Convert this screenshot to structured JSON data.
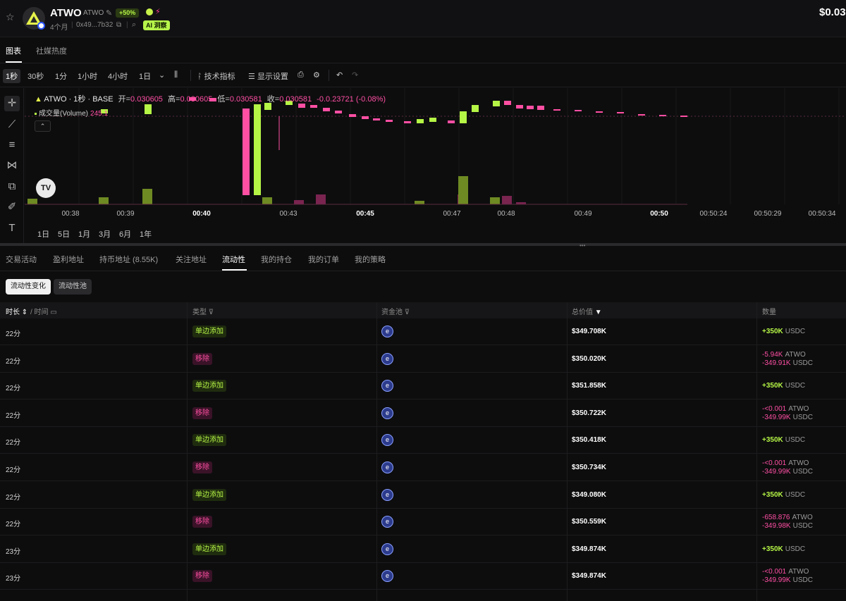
{
  "header": {
    "token_name": "ATWO",
    "token_symbol": "ATWO",
    "pct_badge": "+50%",
    "age": "4个月",
    "address": "0x49...7b32",
    "ai_badge": "AI 洞察",
    "price": "$0.03",
    "colors": {
      "accent_green": "#b5f545",
      "accent_pink": "#ff4fa3"
    }
  },
  "tabs": [
    {
      "label": "图表",
      "active": true
    },
    {
      "label": "社媒热度",
      "active": false
    }
  ],
  "toolbar": {
    "intervals": [
      "1秒",
      "30秒",
      "1分",
      "1小时",
      "4小时",
      "1日"
    ],
    "active_interval": "1秒",
    "indicators": "技术指标",
    "display_settings": "显示设置"
  },
  "chart_legend": {
    "title": "ATWO · 1秒 · BASE",
    "open_label": "开=",
    "open": "0.030605",
    "high_label": "高=",
    "high": "0.030605",
    "low_label": "低=",
    "low": "0.030581",
    "close_label": "收=",
    "close": "0.030581",
    "change": "-0.0.23721 (-0.08%)",
    "volume_label": "成交量(Volume)",
    "volume_value": "245.1"
  },
  "chart_data": {
    "type": "bar",
    "x_ticks": [
      "00:38",
      "00:39",
      "00:40",
      "00:43",
      "00:45",
      "00:47",
      "00:48",
      "00:49",
      "00:50",
      "00:50:24",
      "00:50:29",
      "00:50:34"
    ],
    "bold_ticks": [
      "00:40",
      "00:45",
      "00:50"
    ],
    "candles": [
      {
        "o": 0.03061,
        "c": 0.030605,
        "up": false
      },
      {
        "o": 0.0306,
        "c": 0.030606,
        "up": true
      },
      {
        "o": 0.030605,
        "c": 0.030608,
        "up": true
      },
      {
        "o": 0.030608,
        "c": 0.030606,
        "up": false
      },
      {
        "o": 0.030606,
        "c": 0.030605,
        "up": false
      },
      {
        "o": 0.030605,
        "c": 0.03052,
        "up": false
      },
      {
        "o": 0.03052,
        "c": 0.030612,
        "up": true
      },
      {
        "o": 0.030612,
        "c": 0.03061,
        "up": false
      },
      {
        "o": 0.03061,
        "c": 0.030612,
        "up": true
      },
      {
        "o": 0.030612,
        "c": 0.03061,
        "up": false
      }
    ],
    "volume_note": "volume bars shown beneath candles",
    "legend_position": "top-left"
  },
  "range_buttons": [
    "1日",
    "5日",
    "1月",
    "3月",
    "6月",
    "1年"
  ],
  "bottom_tabs": [
    {
      "label": "交易活动",
      "active": false
    },
    {
      "label": "盈利地址",
      "active": false
    },
    {
      "label": "持币地址 (8.55K)",
      "active": false
    },
    {
      "label": "关注地址",
      "active": false
    },
    {
      "label": "流动性",
      "active": true
    },
    {
      "label": "我的持仓",
      "active": false
    },
    {
      "label": "我的订单",
      "active": false
    },
    {
      "label": "我的策略",
      "active": false
    }
  ],
  "sub_tabs": [
    {
      "label": "流动性变化",
      "active": true
    },
    {
      "label": "流动性池",
      "active": false
    }
  ],
  "table": {
    "headers": {
      "age": "时长",
      "time": "/ 时间",
      "type": "类型",
      "pool": "资金池",
      "total": "总价值",
      "qty": "数量"
    },
    "rows": [
      {
        "age": "22分",
        "type": "单边添加",
        "kind": "add",
        "total": "$349.708K",
        "q1": "+350K",
        "u1": "USDC",
        "q2": "",
        "u2": ""
      },
      {
        "age": "22分",
        "type": "移除",
        "kind": "rem",
        "total": "$350.020K",
        "q1": "-5.94K",
        "u1": "ATWO",
        "q2": "-349.91K",
        "u2": "USDC"
      },
      {
        "age": "22分",
        "type": "单边添加",
        "kind": "add",
        "total": "$351.858K",
        "q1": "+350K",
        "u1": "USDC",
        "q2": "",
        "u2": ""
      },
      {
        "age": "22分",
        "type": "移除",
        "kind": "rem",
        "total": "$350.722K",
        "q1": "-<0.001",
        "u1": "ATWO",
        "q2": "-349.99K",
        "u2": "USDC"
      },
      {
        "age": "22分",
        "type": "单边添加",
        "kind": "add",
        "total": "$350.418K",
        "q1": "+350K",
        "u1": "USDC",
        "q2": "",
        "u2": ""
      },
      {
        "age": "22分",
        "type": "移除",
        "kind": "rem",
        "total": "$350.734K",
        "q1": "-<0.001",
        "u1": "ATWO",
        "q2": "-349.99K",
        "u2": "USDC"
      },
      {
        "age": "22分",
        "type": "单边添加",
        "kind": "add",
        "total": "$349.080K",
        "q1": "+350K",
        "u1": "USDC",
        "q2": "",
        "u2": ""
      },
      {
        "age": "22分",
        "type": "移除",
        "kind": "rem",
        "total": "$350.559K",
        "q1": "-658.876",
        "u1": "ATWO",
        "q2": "-349.98K",
        "u2": "USDC"
      },
      {
        "age": "23分",
        "type": "单边添加",
        "kind": "add",
        "total": "$349.874K",
        "q1": "+350K",
        "u1": "USDC",
        "q2": "",
        "u2": ""
      },
      {
        "age": "23分",
        "type": "移除",
        "kind": "rem",
        "total": "$349.874K",
        "q1": "-<0.001",
        "u1": "ATWO",
        "q2": "-349.99K",
        "u2": "USDC"
      }
    ]
  }
}
